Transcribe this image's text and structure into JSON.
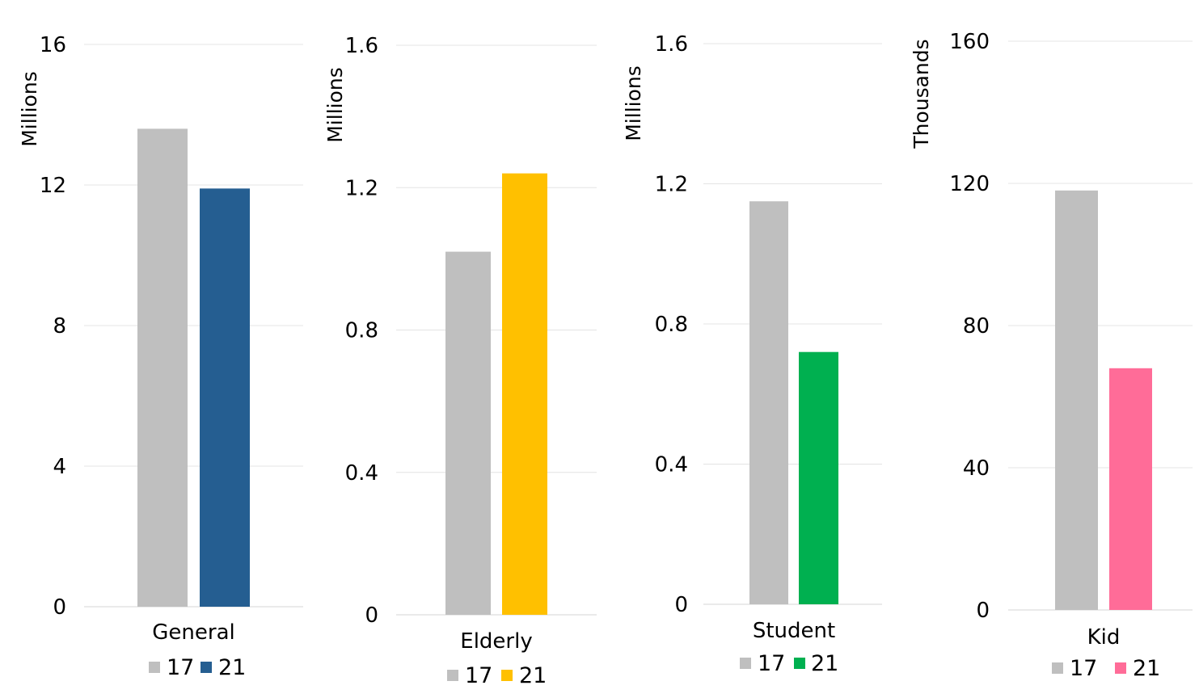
{
  "chart_data": [
    {
      "type": "bar",
      "categories": [
        "General"
      ],
      "ylabel": "Millions",
      "ylim": [
        0,
        16
      ],
      "yticks": [
        "0",
        "4",
        "8",
        "12",
        "16"
      ],
      "grid": true,
      "legend_position": "bottom",
      "series": [
        {
          "name": "17",
          "values": [
            13.6
          ],
          "color": "#bfbfbf"
        },
        {
          "name": "21",
          "values": [
            11.9
          ],
          "color": "#255e91"
        }
      ]
    },
    {
      "type": "bar",
      "categories": [
        "Elderly"
      ],
      "ylabel": "Millions",
      "ylim": [
        0,
        1.6
      ],
      "yticks": [
        "0",
        "0.4",
        "0.8",
        "1.2",
        "1.6"
      ],
      "grid": true,
      "legend_position": "bottom",
      "series": [
        {
          "name": "17",
          "values": [
            1.02
          ],
          "color": "#bfbfbf"
        },
        {
          "name": "21",
          "values": [
            1.24
          ],
          "color": "#ffc000"
        }
      ]
    },
    {
      "type": "bar",
      "categories": [
        "Student"
      ],
      "ylabel": "Millions",
      "ylim": [
        0,
        1.6
      ],
      "yticks": [
        "0",
        "0.4",
        "0.8",
        "1.2",
        "1.6"
      ],
      "grid": true,
      "legend_position": "bottom",
      "series": [
        {
          "name": "17",
          "values": [
            1.15
          ],
          "color": "#bfbfbf"
        },
        {
          "name": "21",
          "values": [
            0.72
          ],
          "color": "#00b050"
        }
      ]
    },
    {
      "type": "bar",
      "categories": [
        "Kid"
      ],
      "ylabel": "Thousands",
      "ylim": [
        0,
        160
      ],
      "yticks": [
        "0",
        "40",
        "80",
        "120",
        "160"
      ],
      "grid": true,
      "legend_position": "bottom",
      "series": [
        {
          "name": "17",
          "values": [
            118
          ],
          "color": "#bfbfbf"
        },
        {
          "name": "21",
          "values": [
            68
          ],
          "color": "#ff6c98"
        }
      ]
    }
  ]
}
